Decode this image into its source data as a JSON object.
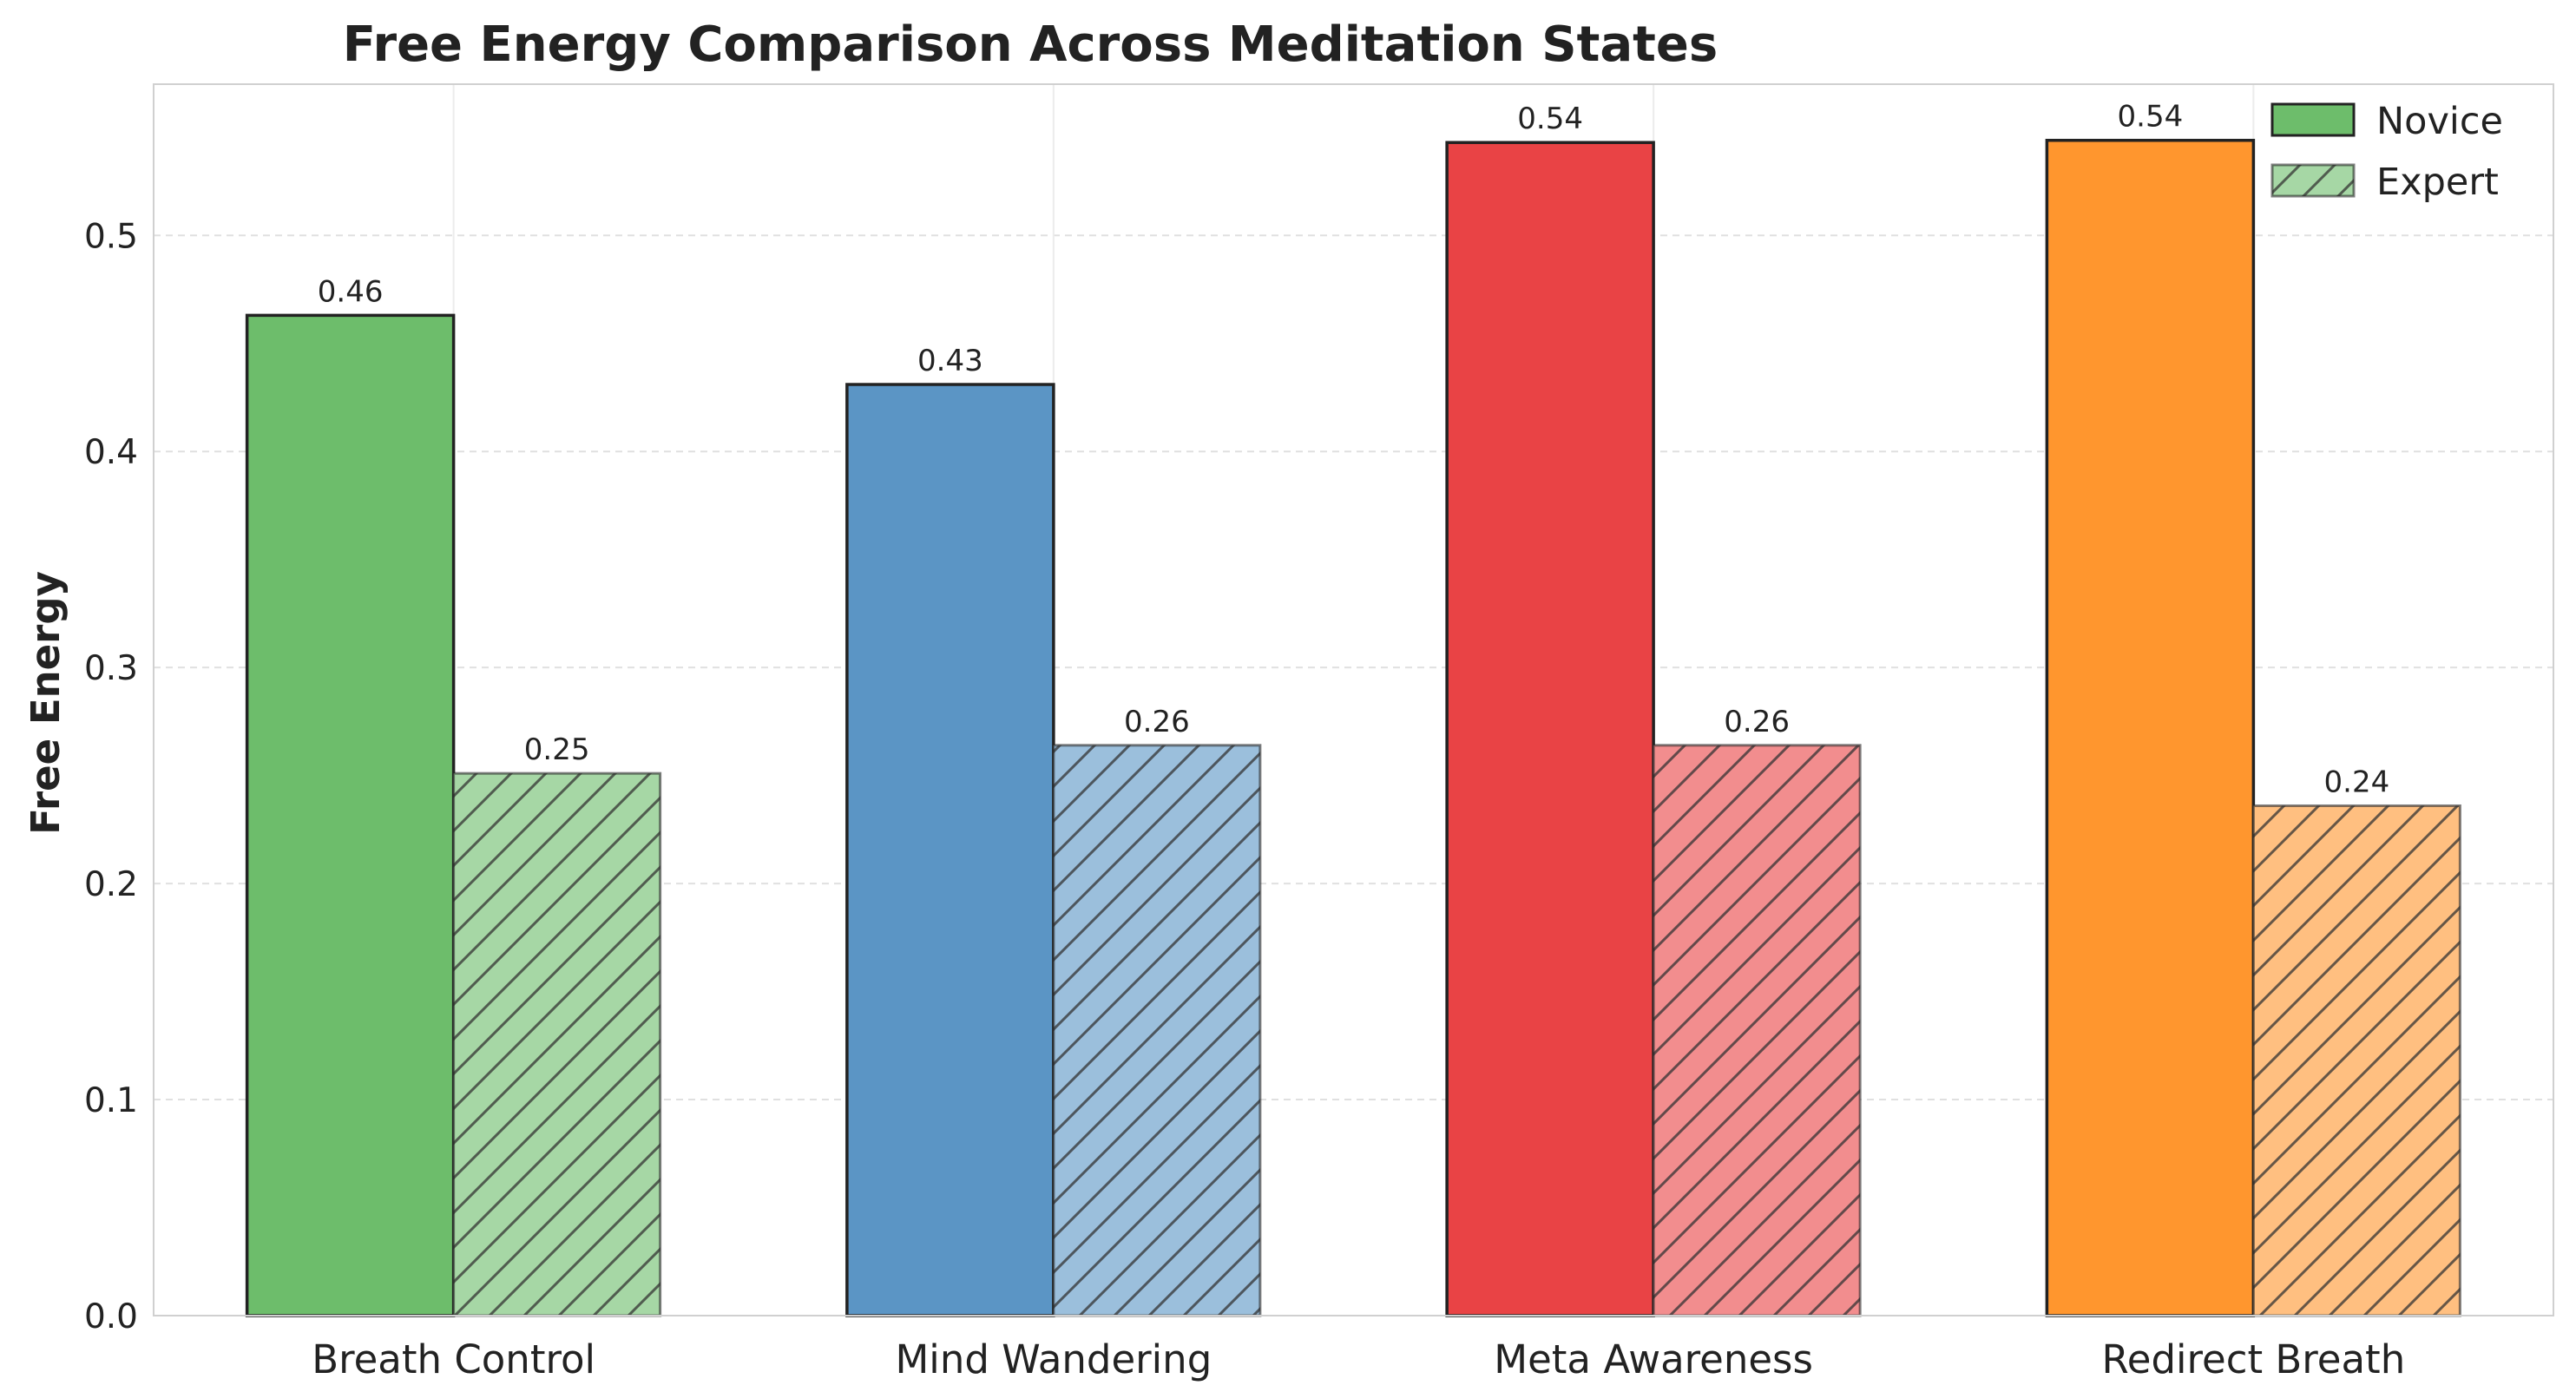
{
  "chart_data": {
    "type": "bar",
    "title": "Free Energy Comparison Across Meditation States",
    "xlabel": "",
    "ylabel": "Free Energy",
    "ylim": [
      0,
      0.57
    ],
    "yticks": [
      "0.0",
      "0.1",
      "0.2",
      "0.3",
      "0.4",
      "0.5"
    ],
    "grid": true,
    "legend_position": "top-right",
    "categories": [
      "Breath Control",
      "Mind Wandering",
      "Meta Awareness",
      "Redirect Breath"
    ],
    "category_colors": [
      "#4daf4a",
      "#377eb8",
      "#e41a1c",
      "#ff7f00"
    ],
    "series": [
      {
        "name": "Novice",
        "values": [
          0.463,
          0.431,
          0.543,
          0.544
        ],
        "labels": [
          "0.46",
          "0.43",
          "0.54",
          "0.54"
        ],
        "hatch": "none"
      },
      {
        "name": "Expert",
        "values": [
          0.251,
          0.264,
          0.264,
          0.236
        ],
        "labels": [
          "0.25",
          "0.26",
          "0.26",
          "0.24"
        ],
        "hatch": "diagonal"
      }
    ]
  }
}
